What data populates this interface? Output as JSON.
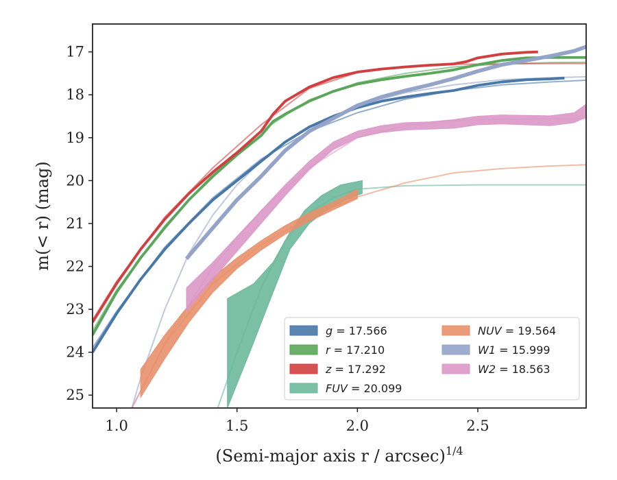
{
  "chart_data": {
    "type": "line",
    "xlabel": "(Semi-major axis r / arcsec)",
    "xlabel_exponent": "1/4",
    "ylabel": "m(< r) (mag)",
    "xlim": [
      0.9,
      2.95
    ],
    "ylim": [
      25.3,
      16.35
    ],
    "y_inverted": true,
    "x_ticks": [
      "1.0",
      "1.5",
      "2.0",
      "2.5"
    ],
    "x_tick_values": [
      1.0,
      1.5,
      2.0,
      2.5
    ],
    "y_ticks": [
      "17",
      "18",
      "19",
      "20",
      "21",
      "22",
      "23",
      "24",
      "25"
    ],
    "y_tick_values": [
      17,
      18,
      19,
      20,
      21,
      22,
      23,
      24,
      25
    ],
    "grid": false,
    "legend_placement": "lower-right",
    "series": [
      {
        "name": "g",
        "legend": "g = 17.566",
        "color": "#4878a8",
        "band": [
          [
            0.9,
            24.0
          ],
          [
            1.0,
            23.1
          ],
          [
            1.1,
            22.3
          ],
          [
            1.2,
            21.6
          ],
          [
            1.3,
            21.0
          ],
          [
            1.4,
            20.45
          ],
          [
            1.5,
            20.0
          ],
          [
            1.6,
            19.55
          ],
          [
            1.7,
            19.1
          ],
          [
            1.8,
            18.75
          ],
          [
            1.9,
            18.5
          ],
          [
            2.0,
            18.3
          ],
          [
            2.1,
            18.15
          ],
          [
            2.2,
            18.05
          ],
          [
            2.3,
            17.97
          ],
          [
            2.4,
            17.9
          ],
          [
            2.5,
            17.78
          ],
          [
            2.6,
            17.7
          ],
          [
            2.7,
            17.65
          ],
          [
            2.8,
            17.63
          ],
          [
            2.86,
            17.61
          ]
        ],
        "band_width": 0.07,
        "model": [
          [
            0.9,
            23.9
          ],
          [
            1.0,
            23.05
          ],
          [
            1.2,
            21.55
          ],
          [
            1.4,
            20.4
          ],
          [
            1.6,
            19.5
          ],
          [
            1.8,
            18.85
          ],
          [
            2.0,
            18.42
          ],
          [
            2.2,
            18.1
          ],
          [
            2.4,
            17.9
          ],
          [
            2.6,
            17.77
          ],
          [
            2.8,
            17.7
          ],
          [
            2.95,
            17.66
          ]
        ]
      },
      {
        "name": "r",
        "legend": "r = 17.210",
        "color": "#5aa65a",
        "band": [
          [
            0.9,
            23.6
          ],
          [
            1.0,
            22.6
          ],
          [
            1.1,
            21.8
          ],
          [
            1.2,
            21.1
          ],
          [
            1.3,
            20.45
          ],
          [
            1.4,
            19.9
          ],
          [
            1.5,
            19.4
          ],
          [
            1.6,
            18.95
          ],
          [
            1.65,
            18.62
          ],
          [
            1.7,
            18.45
          ],
          [
            1.8,
            18.15
          ],
          [
            1.9,
            17.92
          ],
          [
            2.0,
            17.75
          ],
          [
            2.1,
            17.65
          ],
          [
            2.2,
            17.57
          ],
          [
            2.3,
            17.5
          ],
          [
            2.4,
            17.42
          ],
          [
            2.5,
            17.3
          ],
          [
            2.6,
            17.2
          ],
          [
            2.7,
            17.14
          ],
          [
            2.8,
            17.13
          ],
          [
            2.95,
            17.13
          ]
        ],
        "band_width": 0.07,
        "model": [
          [
            0.9,
            23.5
          ],
          [
            1.0,
            22.55
          ],
          [
            1.2,
            21.05
          ],
          [
            1.4,
            19.85
          ],
          [
            1.6,
            18.85
          ],
          [
            1.8,
            18.12
          ],
          [
            2.0,
            17.72
          ],
          [
            2.2,
            17.5
          ],
          [
            2.4,
            17.35
          ],
          [
            2.6,
            17.28
          ],
          [
            2.8,
            17.25
          ],
          [
            2.95,
            17.24
          ]
        ]
      },
      {
        "name": "z",
        "legend": "z = 17.292",
        "color": "#d04040",
        "band": [
          [
            0.9,
            23.3
          ],
          [
            1.0,
            22.4
          ],
          [
            1.1,
            21.6
          ],
          [
            1.2,
            20.9
          ],
          [
            1.3,
            20.3
          ],
          [
            1.4,
            19.8
          ],
          [
            1.5,
            19.35
          ],
          [
            1.6,
            18.85
          ],
          [
            1.65,
            18.45
          ],
          [
            1.7,
            18.15
          ],
          [
            1.8,
            17.82
          ],
          [
            1.9,
            17.6
          ],
          [
            2.0,
            17.47
          ],
          [
            2.1,
            17.4
          ],
          [
            2.2,
            17.35
          ],
          [
            2.3,
            17.31
          ],
          [
            2.4,
            17.28
          ],
          [
            2.45,
            17.23
          ],
          [
            2.5,
            17.14
          ],
          [
            2.6,
            17.05
          ],
          [
            2.7,
            17.01
          ],
          [
            2.75,
            17.0
          ]
        ],
        "band_width": 0.07,
        "model": [
          [
            0.9,
            23.25
          ],
          [
            1.0,
            22.35
          ],
          [
            1.2,
            20.85
          ],
          [
            1.4,
            19.7
          ],
          [
            1.6,
            18.7
          ],
          [
            1.8,
            17.85
          ],
          [
            2.0,
            17.48
          ],
          [
            2.2,
            17.34
          ],
          [
            2.4,
            17.29
          ],
          [
            2.6,
            17.28
          ],
          [
            2.8,
            17.27
          ],
          [
            2.95,
            17.27
          ]
        ]
      },
      {
        "name": "FUV",
        "legend": "FUV = 20.099",
        "color": "#6cb89c",
        "upper": [
          [
            1.46,
            22.75
          ],
          [
            1.57,
            22.4
          ],
          [
            1.65,
            21.9
          ],
          [
            1.72,
            21.2
          ],
          [
            1.78,
            20.7
          ],
          [
            1.85,
            20.35
          ],
          [
            1.93,
            20.1
          ],
          [
            2.02,
            20.0
          ]
        ],
        "lower": [
          [
            1.46,
            25.3
          ],
          [
            1.56,
            23.9
          ],
          [
            1.65,
            22.6
          ],
          [
            1.72,
            21.6
          ],
          [
            1.8,
            21.0
          ],
          [
            1.87,
            20.7
          ],
          [
            1.95,
            20.45
          ],
          [
            2.02,
            20.3
          ]
        ],
        "model": [
          [
            1.42,
            25.3
          ],
          [
            1.5,
            24.0
          ],
          [
            1.6,
            22.5
          ],
          [
            1.7,
            21.4
          ],
          [
            1.8,
            20.75
          ],
          [
            1.9,
            20.4
          ],
          [
            2.0,
            20.2
          ],
          [
            2.2,
            20.12
          ],
          [
            2.5,
            20.1
          ],
          [
            2.95,
            20.1
          ]
        ]
      },
      {
        "name": "NUV",
        "legend": "NUV = 19.564",
        "color": "#e8906a",
        "upper": [
          [
            1.1,
            24.4
          ],
          [
            1.2,
            23.6
          ],
          [
            1.3,
            22.9
          ],
          [
            1.4,
            22.25
          ],
          [
            1.5,
            21.8
          ],
          [
            1.6,
            21.4
          ],
          [
            1.7,
            21.05
          ],
          [
            1.8,
            20.75
          ],
          [
            1.9,
            20.5
          ],
          [
            2.0,
            20.2
          ]
        ],
        "lower": [
          [
            1.1,
            25.05
          ],
          [
            1.2,
            24.15
          ],
          [
            1.3,
            23.3
          ],
          [
            1.4,
            22.6
          ],
          [
            1.5,
            22.05
          ],
          [
            1.6,
            21.62
          ],
          [
            1.7,
            21.25
          ],
          [
            1.8,
            20.95
          ],
          [
            1.9,
            20.68
          ],
          [
            2.0,
            20.42
          ]
        ],
        "model": [
          [
            1.0,
            26.0
          ],
          [
            1.2,
            23.8
          ],
          [
            1.4,
            22.4
          ],
          [
            1.6,
            21.5
          ],
          [
            1.8,
            20.85
          ],
          [
            2.0,
            20.38
          ],
          [
            2.2,
            20.05
          ],
          [
            2.4,
            19.82
          ],
          [
            2.6,
            19.72
          ],
          [
            2.8,
            19.66
          ],
          [
            2.95,
            19.63
          ]
        ]
      },
      {
        "name": "W1",
        "legend": "W1 = 15.999",
        "color": "#94a4c8",
        "band": [
          [
            1.29,
            21.82
          ],
          [
            1.4,
            21.1
          ],
          [
            1.5,
            20.45
          ],
          [
            1.6,
            19.9
          ],
          [
            1.7,
            19.3
          ],
          [
            1.8,
            18.85
          ],
          [
            1.9,
            18.55
          ],
          [
            2.0,
            18.25
          ],
          [
            2.1,
            18.05
          ],
          [
            2.2,
            17.9
          ],
          [
            2.3,
            17.77
          ],
          [
            2.4,
            17.62
          ],
          [
            2.5,
            17.45
          ],
          [
            2.6,
            17.3
          ],
          [
            2.7,
            17.2
          ],
          [
            2.8,
            17.1
          ],
          [
            2.9,
            16.98
          ],
          [
            2.95,
            16.88
          ]
        ],
        "band_width": 0.1,
        "model": [
          [
            1.0,
            26.5
          ],
          [
            1.1,
            24.6
          ],
          [
            1.2,
            23.0
          ],
          [
            1.3,
            21.7
          ],
          [
            1.4,
            20.8
          ],
          [
            1.5,
            20.1
          ],
          [
            1.6,
            19.55
          ],
          [
            1.7,
            19.1
          ],
          [
            1.8,
            18.75
          ],
          [
            2.0,
            18.25
          ],
          [
            2.2,
            17.95
          ],
          [
            2.4,
            17.77
          ],
          [
            2.6,
            17.65
          ],
          [
            2.8,
            17.6
          ],
          [
            2.95,
            17.58
          ]
        ]
      },
      {
        "name": "W2",
        "legend": "W2 = 18.563",
        "color": "#dc98c8",
        "upper": [
          [
            1.29,
            22.5
          ],
          [
            1.4,
            21.9
          ],
          [
            1.5,
            21.3
          ],
          [
            1.6,
            20.7
          ],
          [
            1.7,
            20.1
          ],
          [
            1.8,
            19.55
          ],
          [
            1.9,
            19.1
          ],
          [
            2.0,
            18.85
          ],
          [
            2.1,
            18.72
          ],
          [
            2.2,
            18.65
          ],
          [
            2.3,
            18.63
          ],
          [
            2.4,
            18.58
          ],
          [
            2.5,
            18.5
          ],
          [
            2.6,
            18.47
          ],
          [
            2.7,
            18.48
          ],
          [
            2.8,
            18.49
          ],
          [
            2.9,
            18.42
          ],
          [
            2.95,
            18.22
          ]
        ],
        "lower": [
          [
            1.29,
            23.05
          ],
          [
            1.4,
            22.3
          ],
          [
            1.5,
            21.65
          ],
          [
            1.6,
            21.0
          ],
          [
            1.7,
            20.35
          ],
          [
            1.8,
            19.75
          ],
          [
            1.9,
            19.28
          ],
          [
            2.0,
            19.0
          ],
          [
            2.1,
            18.88
          ],
          [
            2.2,
            18.82
          ],
          [
            2.3,
            18.8
          ],
          [
            2.4,
            18.78
          ],
          [
            2.5,
            18.7
          ],
          [
            2.6,
            18.68
          ],
          [
            2.7,
            18.7
          ],
          [
            2.8,
            18.72
          ],
          [
            2.9,
            18.65
          ],
          [
            2.95,
            18.52
          ]
        ],
        "model": [
          [
            1.0,
            26.0
          ],
          [
            1.2,
            23.8
          ],
          [
            1.4,
            22.0
          ],
          [
            1.6,
            20.7
          ],
          [
            1.8,
            19.7
          ],
          [
            2.0,
            19.0
          ],
          [
            2.2,
            18.72
          ],
          [
            2.4,
            18.6
          ],
          [
            2.6,
            18.57
          ],
          [
            2.8,
            18.56
          ],
          [
            2.95,
            18.56
          ]
        ]
      }
    ],
    "legend_order": [
      "g",
      "NUV",
      "r",
      "W1",
      "z",
      "W2",
      "FUV"
    ]
  }
}
